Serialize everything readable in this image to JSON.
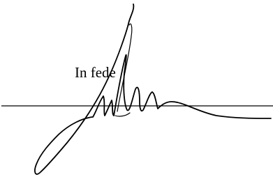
{
  "closing": "In fede"
}
